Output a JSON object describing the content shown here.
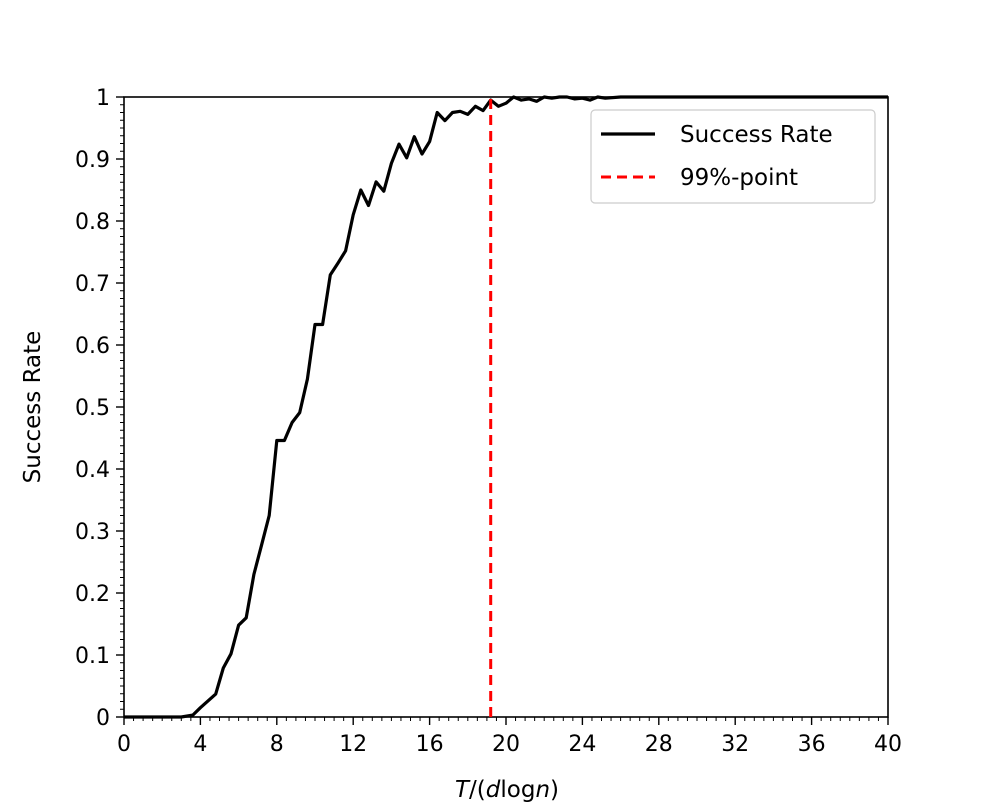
{
  "chart_data": {
    "type": "line",
    "xlabel": {
      "italic1": "T",
      "plain1": "/(",
      "italic2": "d",
      "plain2": "log",
      "italic3": "n",
      "plain3": ")"
    },
    "ylabel": "Success Rate",
    "xlim": [
      0,
      40
    ],
    "ylim": [
      0,
      1
    ],
    "x_ticks": [
      "0",
      "4",
      "8",
      "12",
      "16",
      "20",
      "24",
      "28",
      "32",
      "36",
      "40"
    ],
    "y_ticks": [
      "0",
      "0.1",
      "0.2",
      "0.3",
      "0.4",
      "0.5",
      "0.6",
      "0.7",
      "0.8",
      "0.9",
      "1"
    ],
    "grid": false,
    "legend_position": "top-right",
    "series": [
      {
        "name": "Success Rate",
        "color": "#000000",
        "style": "solid",
        "x": [
          0,
          1,
          2,
          3,
          3.6,
          4,
          4.8,
          5.2,
          5.6,
          6,
          6.4,
          6.8,
          7.2,
          7.6,
          8,
          8.4,
          8.8,
          9.2,
          9.6,
          10,
          10.4,
          10.8,
          11.2,
          11.6,
          12,
          12.4,
          12.8,
          13.2,
          13.6,
          14,
          14.4,
          14.8,
          15.2,
          15.6,
          16,
          16.4,
          16.8,
          17.2,
          17.6,
          18,
          18.4,
          18.8,
          19.2,
          19.6,
          20,
          20.4,
          20.8,
          21.2,
          21.6,
          22,
          22.4,
          22.8,
          23.2,
          23.6,
          24,
          24.4,
          24.8,
          25.2,
          26,
          27,
          28,
          30,
          32,
          34,
          36,
          38,
          40
        ],
        "y": [
          0,
          0,
          0,
          0,
          0.003,
          0.015,
          0.037,
          0.079,
          0.102,
          0.148,
          0.16,
          0.23,
          0.277,
          0.325,
          0.446,
          0.446,
          0.475,
          0.491,
          0.545,
          0.633,
          0.633,
          0.713,
          0.732,
          0.752,
          0.81,
          0.85,
          0.825,
          0.863,
          0.848,
          0.893,
          0.924,
          0.902,
          0.936,
          0.908,
          0.928,
          0.975,
          0.962,
          0.975,
          0.977,
          0.972,
          0.985,
          0.978,
          0.995,
          0.985,
          0.99,
          1.0,
          0.995,
          0.997,
          0.993,
          1.0,
          0.998,
          1.0,
          1.0,
          0.997,
          0.998,
          0.995,
          1.0,
          0.998,
          1.0,
          1.0,
          1.0,
          1.0,
          1.0,
          1.0,
          1.0,
          1.0,
          1.0
        ]
      },
      {
        "name": "99%-point",
        "color": "#ff0000",
        "style": "dashed",
        "x": [
          19.2,
          19.2
        ],
        "y": [
          0,
          1
        ]
      }
    ]
  }
}
